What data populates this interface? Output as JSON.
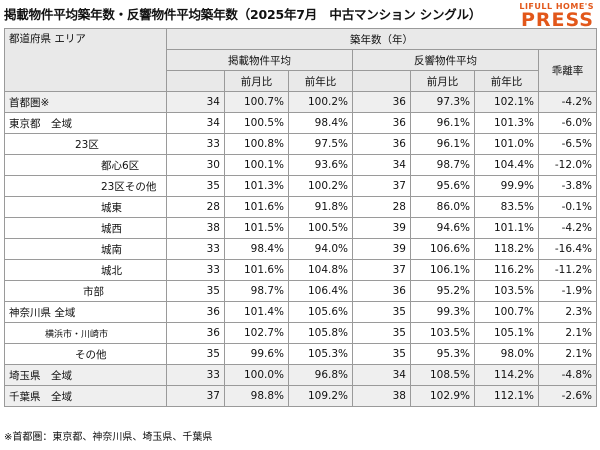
{
  "title": "掲載物件平均築年数・反響物件平均築年数（2025年7月　中古マンション シングル）",
  "logo": {
    "top": "LIFULL HOME'S",
    "main": "PRESS"
  },
  "headers": {
    "area": "都道府県 エリア",
    "age": "築年数（年）",
    "listing": "掲載物件平均",
    "response": "反響物件平均",
    "mom": "前月比",
    "yoy": "前年比",
    "gap": "乖離率"
  },
  "rows": [
    {
      "name": "首都圏※",
      "indent": 0,
      "band": "grp",
      "l": "34",
      "lm": "100.7%",
      "ly": "100.2%",
      "r": "36",
      "rm": "97.3%",
      "ry": "102.1%",
      "gap": "-4.2%"
    },
    {
      "name": "東京都　全域",
      "indent": 0,
      "band": "",
      "l": "34",
      "lm": "100.5%",
      "ly": "98.4%",
      "r": "36",
      "rm": "96.1%",
      "ry": "101.3%",
      "gap": "-6.0%"
    },
    {
      "name": "23区",
      "indent": 1,
      "band": "",
      "l": "33",
      "lm": "100.8%",
      "ly": "97.5%",
      "r": "36",
      "rm": "96.1%",
      "ry": "101.0%",
      "gap": "-6.5%"
    },
    {
      "name": "都心6区",
      "indent": 2,
      "band": "",
      "l": "30",
      "lm": "100.1%",
      "ly": "93.6%",
      "r": "34",
      "rm": "98.7%",
      "ry": "104.4%",
      "gap": "-12.0%"
    },
    {
      "name": "23区その他",
      "indent": 2,
      "band": "",
      "l": "35",
      "lm": "101.3%",
      "ly": "100.2%",
      "r": "37",
      "rm": "95.6%",
      "ry": "99.9%",
      "gap": "-3.8%"
    },
    {
      "name": "城東",
      "indent": 2,
      "band": "",
      "l": "28",
      "lm": "101.6%",
      "ly": "91.8%",
      "r": "28",
      "rm": "86.0%",
      "ry": "83.5%",
      "gap": "-0.1%"
    },
    {
      "name": "城西",
      "indent": 2,
      "band": "",
      "l": "38",
      "lm": "101.5%",
      "ly": "100.5%",
      "r": "39",
      "rm": "94.6%",
      "ry": "101.1%",
      "gap": "-4.2%"
    },
    {
      "name": "城南",
      "indent": 2,
      "band": "",
      "l": "33",
      "lm": "98.4%",
      "ly": "94.0%",
      "r": "39",
      "rm": "106.6%",
      "ry": "118.2%",
      "gap": "-16.4%"
    },
    {
      "name": "城北",
      "indent": 2,
      "band": "",
      "l": "33",
      "lm": "101.6%",
      "ly": "104.8%",
      "r": "37",
      "rm": "106.1%",
      "ry": "116.2%",
      "gap": "-11.2%"
    },
    {
      "name": "市部",
      "indent": 3,
      "band": "",
      "l": "35",
      "lm": "98.7%",
      "ly": "106.4%",
      "r": "36",
      "rm": "95.2%",
      "ry": "103.5%",
      "gap": "-1.9%"
    },
    {
      "name": "神奈川県 全域",
      "indent": 0,
      "band": "",
      "l": "36",
      "lm": "101.4%",
      "ly": "105.6%",
      "r": "35",
      "rm": "99.3%",
      "ry": "100.7%",
      "gap": "2.3%"
    },
    {
      "name": "横浜市・川崎市",
      "indent": 4,
      "band": "",
      "small": true,
      "l": "36",
      "lm": "102.7%",
      "ly": "105.8%",
      "r": "35",
      "rm": "103.5%",
      "ry": "105.1%",
      "gap": "2.1%"
    },
    {
      "name": "その他",
      "indent": 5,
      "band": "",
      "l": "35",
      "lm": "99.6%",
      "ly": "105.3%",
      "r": "35",
      "rm": "95.3%",
      "ry": "98.0%",
      "gap": "2.1%"
    },
    {
      "name": "埼玉県　全域",
      "indent": 0,
      "band": "grp",
      "l": "33",
      "lm": "100.0%",
      "ly": "96.8%",
      "r": "34",
      "rm": "108.5%",
      "ry": "114.2%",
      "gap": "-4.8%"
    },
    {
      "name": "千葉県　全域",
      "indent": 0,
      "band": "grp",
      "l": "37",
      "lm": "98.8%",
      "ly": "109.2%",
      "r": "38",
      "rm": "102.9%",
      "ry": "112.1%",
      "gap": "-2.6%"
    }
  ],
  "footnote": "※首都圏：東京都、神奈川県、埼玉県、千葉県"
}
